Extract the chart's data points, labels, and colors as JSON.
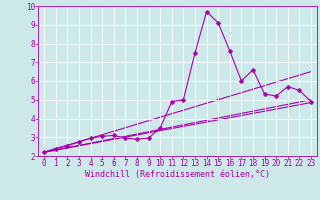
{
  "background_color": "#cce8e8",
  "grid_color": "#ffffff",
  "line_color": "#aa00aa",
  "marker": "D",
  "markersize": 2.5,
  "linewidth": 0.8,
  "xlabel": "Windchill (Refroidissement éolien,°C)",
  "xlabel_fontsize": 6.0,
  "tick_fontsize": 5.5,
  "xlim": [
    -0.5,
    23.5
  ],
  "ylim": [
    2,
    10
  ],
  "yticks": [
    2,
    3,
    4,
    5,
    6,
    7,
    8,
    9,
    10
  ],
  "xticks": [
    0,
    1,
    2,
    3,
    4,
    5,
    6,
    7,
    8,
    9,
    10,
    11,
    12,
    13,
    14,
    15,
    16,
    17,
    18,
    19,
    20,
    21,
    22,
    23
  ],
  "series1_x": [
    0,
    1,
    2,
    3,
    4,
    5,
    6,
    7,
    8,
    9,
    10,
    11,
    12,
    13,
    14,
    15,
    16,
    17,
    18,
    19,
    20,
    21,
    22,
    23
  ],
  "series1_y": [
    2.2,
    2.4,
    2.55,
    2.75,
    2.95,
    3.05,
    3.1,
    2.95,
    2.9,
    2.95,
    3.5,
    4.9,
    5.0,
    7.5,
    9.7,
    9.1,
    7.6,
    6.0,
    6.6,
    5.3,
    5.2,
    5.7,
    5.5,
    4.9
  ],
  "series2_x": [
    0,
    23
  ],
  "series2_y": [
    2.2,
    5.0
  ],
  "series3_x": [
    0,
    23
  ],
  "series3_y": [
    2.2,
    4.85
  ],
  "series4_x": [
    0,
    23
  ],
  "series4_y": [
    2.2,
    6.5
  ],
  "figsize": [
    3.2,
    2.0
  ],
  "dpi": 100
}
